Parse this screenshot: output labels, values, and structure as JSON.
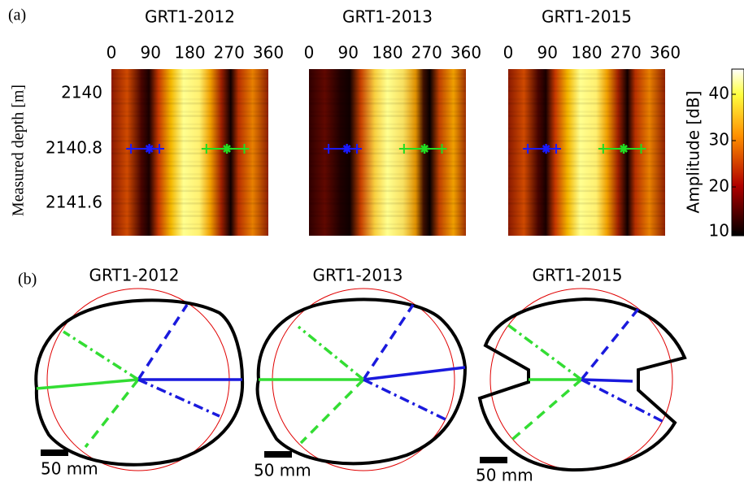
{
  "panel_a": {
    "label": "(a)",
    "titles": [
      "GRT1-2012",
      "GRT1-2013",
      "GRT1-2015"
    ],
    "angle_ticks": [
      "0",
      "90",
      "180",
      "270",
      "360"
    ],
    "depth_ticks": [
      "2140",
      "2140.8",
      "2141.6"
    ],
    "y_label": "Measured depth [m]",
    "colorbar": {
      "label": "Amplitude [dB]",
      "ticks": [
        "40",
        "30",
        "20",
        "10"
      ]
    }
  },
  "panel_b": {
    "label": "(b)",
    "titles": [
      "GRT1-2012",
      "GRT1-2013",
      "GRT1-2015"
    ],
    "scale_label": "50 mm"
  }
}
